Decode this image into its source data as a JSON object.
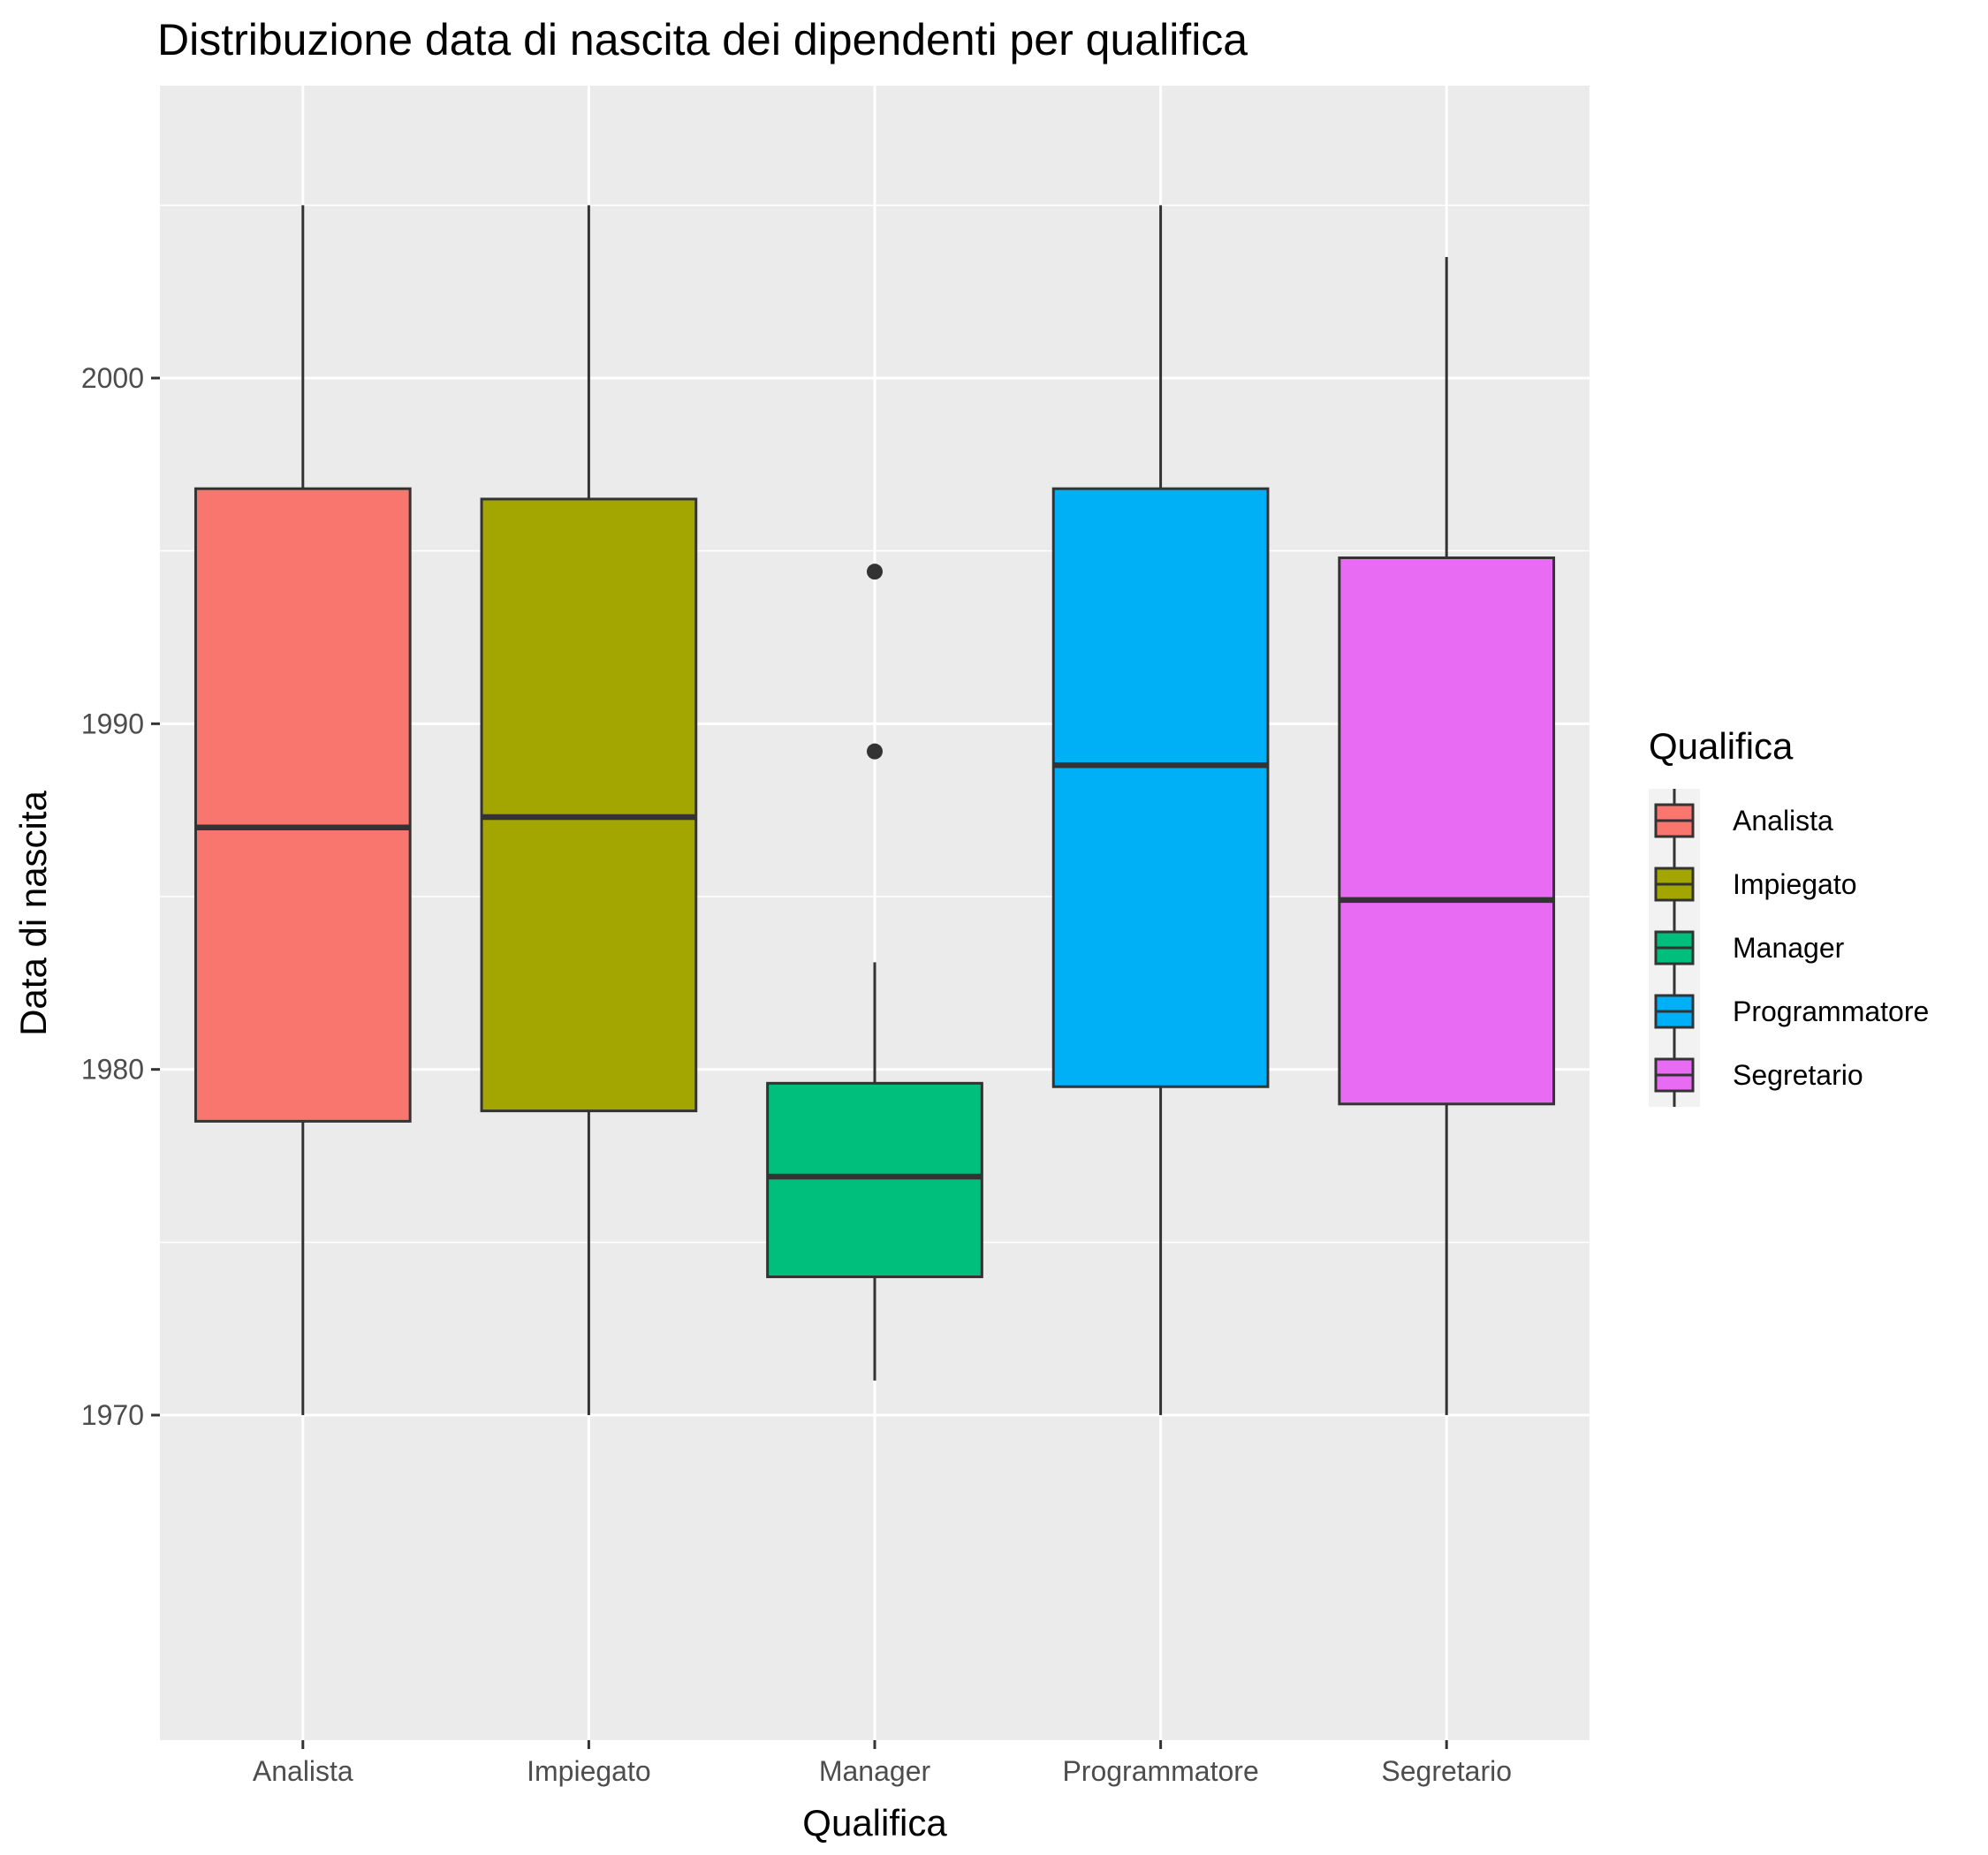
{
  "chart_data": {
    "type": "boxplot",
    "title": "Distribuzione data di nascita dei dipendenti per qualifica",
    "xlabel": "Qualifica",
    "ylabel": "Data di nascita",
    "ylim": [
      1968.5,
      2006.8
    ],
    "yticks": [
      1970,
      1980,
      1990,
      2000
    ],
    "ytick_labels": [
      "1970",
      "1980",
      "1990",
      "2000"
    ],
    "grid": true,
    "legend_position": "right",
    "legend_title": "Qualifica",
    "categories": [
      "Analista",
      "Impiegato",
      "Manager",
      "Programmatore",
      "Segretario"
    ],
    "colors": [
      "#F8766D",
      "#A3A500",
      "#00BF7D",
      "#00B0F6",
      "#E76BF3"
    ],
    "boxes": [
      {
        "min": 1970.0,
        "q1": 1978.5,
        "median": 1987.0,
        "q3": 1996.8,
        "max": 2005.0,
        "outliers": []
      },
      {
        "min": 1970.0,
        "q1": 1978.8,
        "median": 1987.3,
        "q3": 1996.5,
        "max": 2005.0,
        "outliers": []
      },
      {
        "min": 1971.0,
        "q1": 1974.0,
        "median": 1976.9,
        "q3": 1979.6,
        "max": 1983.1,
        "outliers": [
          1989.2,
          1994.4
        ]
      },
      {
        "min": 1970.0,
        "q1": 1979.5,
        "median": 1988.8,
        "q3": 1996.8,
        "max": 2005.0,
        "outliers": []
      },
      {
        "min": 1970.0,
        "q1": 1979.0,
        "median": 1984.9,
        "q3": 1994.8,
        "max": 2003.5,
        "outliers": []
      }
    ]
  }
}
